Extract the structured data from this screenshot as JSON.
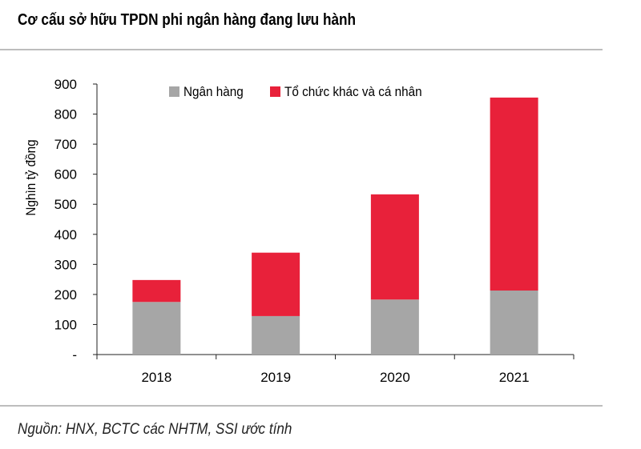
{
  "title": "Cơ cấu sở hữu TPDN phi ngân hàng đang lưu hành",
  "source": "Nguồn: HNX, BCTC các NHTM, SSI ước tính",
  "colors": {
    "bank": "#a6a6a6",
    "other": "#e8213a"
  },
  "chart_data": {
    "type": "bar",
    "stacked": true,
    "categories": [
      "2018",
      "2019",
      "2020",
      "2021"
    ],
    "series": [
      {
        "name": "Ngân hàng",
        "values": [
          175,
          128,
          183,
          213
        ]
      },
      {
        "name": "Tổ chức khác và cá nhân",
        "values": [
          73,
          211,
          350,
          642
        ]
      }
    ],
    "ylabel": "Nghìn tỷ đồng",
    "ylim": [
      0,
      900
    ],
    "yticks": [
      0,
      100,
      200,
      300,
      400,
      500,
      600,
      700,
      800,
      900
    ],
    "ytick_labels": [
      "-",
      "100",
      "200",
      "300",
      "400",
      "500",
      "600",
      "700",
      "800",
      "900"
    ],
    "legend_position": "top",
    "grid": false
  }
}
